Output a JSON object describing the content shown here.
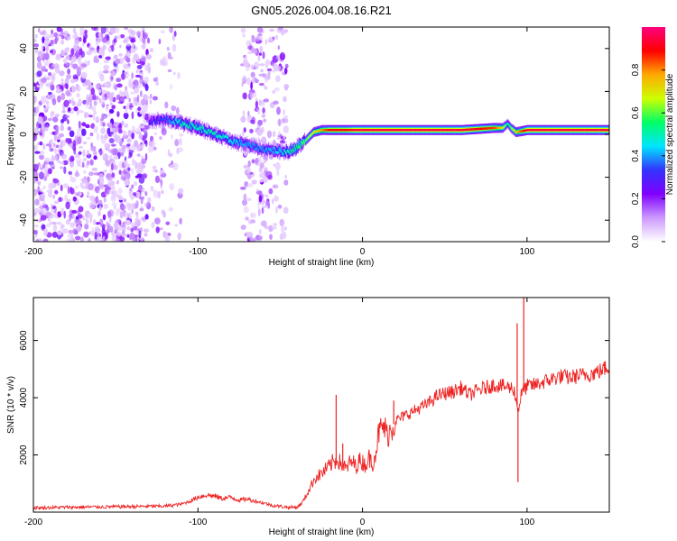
{
  "figure_title": "GN05.2026.004.08.16.R21",
  "chart_data": [
    {
      "type": "heatmap",
      "title": "GN05.2026.004.08.16.R21",
      "xlabel": "Height of straight line (km)",
      "ylabel": "Frequency (Hz)",
      "xlim": [
        -200,
        150
      ],
      "ylim": [
        -50,
        50
      ],
      "x_ticks": [
        -200,
        -100,
        0,
        100
      ],
      "x_tick_labels": [
        "-200",
        "-100",
        "0",
        "100"
      ],
      "y_ticks": [
        -40,
        -20,
        0,
        20,
        40
      ],
      "y_tick_labels": [
        "-40",
        "-20",
        "0",
        "20",
        "40"
      ],
      "colorbar": {
        "label": "Normalized spectral amplitude",
        "range": [
          0,
          1
        ],
        "ticks": [
          0,
          0.2,
          0.4,
          0.6,
          0.8
        ],
        "tick_labels": [
          "0.0",
          "0.2",
          "0.4",
          "0.6",
          "0.8"
        ],
        "colormap": [
          "#ffffff",
          "#cc99ff",
          "#8000ff",
          "#3333ff",
          "#00e5ff",
          "#00ff66",
          "#ccff00",
          "#ffaa00",
          "#ff0000",
          "#ff0080"
        ]
      },
      "noise_regions": [
        {
          "x_from": -200,
          "x_to": -130,
          "density": 1.0
        },
        {
          "x_from": -130,
          "x_to": -110,
          "density": 0.3
        },
        {
          "x_from": -73,
          "x_to": -46,
          "density": 0.6
        }
      ],
      "signal_track": {
        "x": [
          -130,
          -120,
          -110,
          -100,
          -90,
          -80,
          -70,
          -60,
          -50,
          -45,
          -40,
          -35,
          -30,
          -25,
          -20,
          -15,
          -10,
          -5,
          0,
          10,
          20,
          40,
          60,
          80,
          85,
          88,
          90,
          93,
          100,
          110,
          130,
          150
        ],
        "frequency": [
          6,
          7,
          5,
          3,
          0,
          -3,
          -5,
          -7,
          -8,
          -8,
          -6,
          -3,
          1,
          2,
          2,
          2,
          2,
          2,
          2,
          2,
          2,
          2,
          2,
          3,
          3,
          5,
          3,
          1,
          2,
          2,
          2,
          2
        ],
        "amplitude": [
          0.3,
          0.35,
          0.5,
          0.5,
          0.5,
          0.45,
          0.4,
          0.4,
          0.45,
          0.5,
          0.55,
          0.6,
          0.7,
          0.8,
          0.9,
          0.9,
          0.9,
          0.95,
          0.95,
          0.95,
          0.95,
          0.95,
          0.95,
          0.85,
          0.7,
          0.5,
          0.6,
          0.75,
          0.95,
          0.95,
          0.95,
          0.95
        ]
      }
    },
    {
      "type": "line",
      "xlabel": "Height of straight line (km)",
      "ylabel": "SNR (10 * v/v)",
      "xlim": [
        -200,
        150
      ],
      "ylim": [
        0,
        7500
      ],
      "x_ticks": [
        -200,
        -100,
        0,
        100
      ],
      "x_tick_labels": [
        "-200",
        "-100",
        "0",
        "100"
      ],
      "y_ticks": [
        2000,
        4000,
        6000
      ],
      "y_tick_labels": [
        "2000",
        "4000",
        "6000"
      ],
      "series": [
        {
          "name": "SNR",
          "color": "#ee2222",
          "x": [
            -200,
            -180,
            -150,
            -120,
            -110,
            -105,
            -100,
            -95,
            -90,
            -85,
            -80,
            -75,
            -70,
            -65,
            -60,
            -55,
            -50,
            -45,
            -40,
            -37,
            -34,
            -31,
            -29,
            -26,
            -23,
            -20,
            -18,
            -16,
            -15,
            -14,
            -12,
            -10,
            -8,
            -6,
            -4,
            -2,
            0,
            2,
            4,
            6,
            8,
            10,
            13,
            15,
            18,
            20,
            25,
            30,
            35,
            40,
            45,
            50,
            55,
            60,
            65,
            70,
            75,
            80,
            85,
            90,
            92,
            93,
            94,
            95,
            96,
            97,
            100,
            105,
            110,
            115,
            120,
            125,
            130,
            135,
            140,
            145,
            150
          ],
          "values": [
            150,
            170,
            190,
            210,
            280,
            380,
            520,
            600,
            560,
            480,
            520,
            420,
            460,
            380,
            320,
            240,
            200,
            170,
            170,
            300,
            600,
            950,
            1200,
            1300,
            1450,
            1600,
            1750,
            1800,
            1900,
            1750,
            1650,
            1500,
            1700,
            1750,
            1600,
            1800,
            1750,
            1650,
            1900,
            1700,
            2100,
            2800,
            3000,
            2700,
            2950,
            3200,
            3350,
            3500,
            3650,
            3800,
            4050,
            4150,
            4200,
            4350,
            4100,
            4250,
            4350,
            4450,
            4400,
            4350,
            4300,
            4000,
            3700,
            3600,
            4000,
            4200,
            4400,
            4450,
            4550,
            4650,
            4750,
            4700,
            4750,
            4800,
            4850,
            4950,
            5100
          ],
          "annotations": [
            {
              "x": -16,
              "y_peak": 4100
            },
            {
              "x": -12,
              "y_peak": 2400
            },
            {
              "x": 19,
              "y_peak": 3900
            },
            {
              "x": 94,
              "y_peak": 6600
            },
            {
              "x": 94.5,
              "y_low": 1050
            },
            {
              "x": 98,
              "y_peak": 7500
            }
          ]
        }
      ]
    }
  ]
}
